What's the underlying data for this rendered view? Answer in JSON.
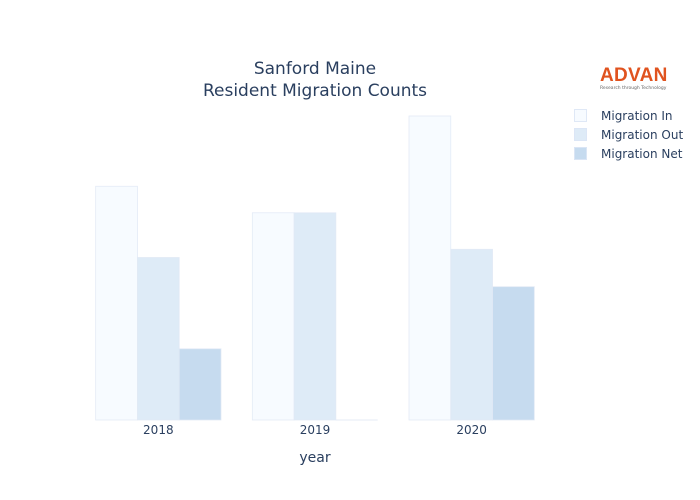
{
  "chart_data": {
    "type": "bar",
    "title": "Sanford Maine",
    "subtitle": "Resident Migration Counts",
    "xlabel": "year",
    "ylabel": "",
    "categories": [
      "2018",
      "2019",
      "2020"
    ],
    "series": [
      {
        "name": "Migration In",
        "values": [
          2560,
          2270,
          3330
        ],
        "color": "#f7fbff"
      },
      {
        "name": "Migration Out",
        "values": [
          1780,
          2270,
          1870
        ],
        "color": "#deebf7"
      },
      {
        "name": "Migration Net",
        "values": [
          780,
          0,
          1460
        ],
        "color": "#c6dbef"
      }
    ],
    "ylim": [
      0,
      3330
    ],
    "y_axis_visible": false,
    "grid": false,
    "legend": "top-right"
  },
  "logo": {
    "word": "ADVAN",
    "tagline": "Research through Technology",
    "color": "#e0531f"
  }
}
